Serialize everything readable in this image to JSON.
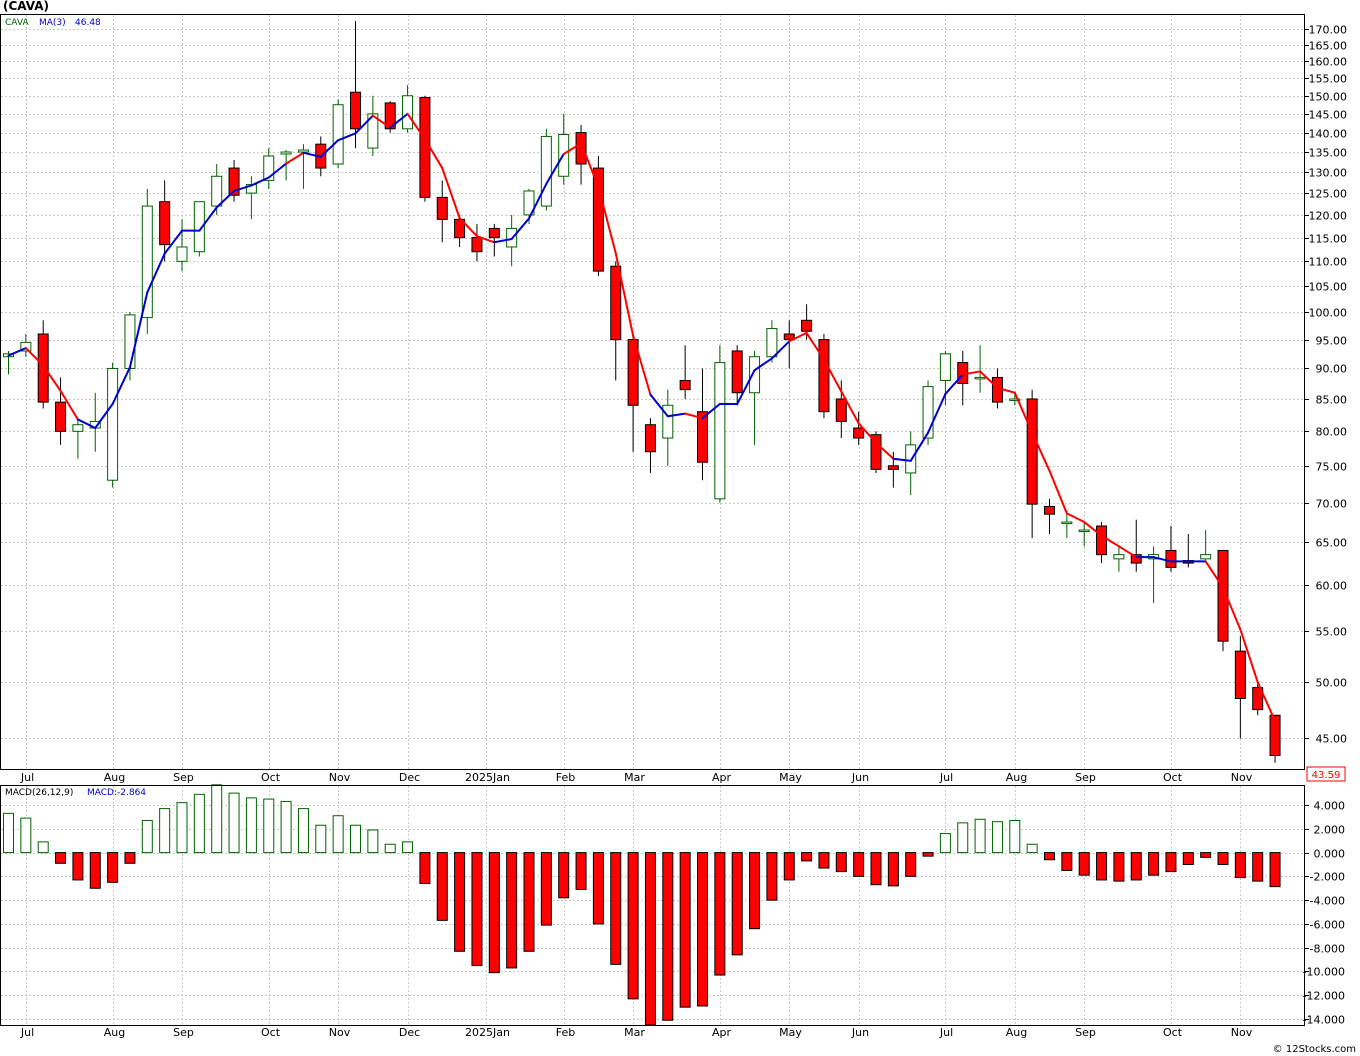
{
  "header": {
    "symbol": "(CAVA)"
  },
  "footer": {
    "copyright": "© 12Stocks.com"
  },
  "colors": {
    "up": "#006400",
    "down": "#ff0000",
    "ma_up": "#0000d0",
    "ma_down": "#ff0000",
    "grid": "#c8c8c8"
  },
  "chart_data": [
    {
      "type": "candlestick",
      "legend": {
        "symbol": "CAVA",
        "ma_label": "MA(3)",
        "ma_value": "46.48"
      },
      "scale": "log",
      "ylim": [
        42.5,
        174.5
      ],
      "y_ticks": [
        "170.00",
        "165.00",
        "160.00",
        "155.00",
        "150.00",
        "145.00",
        "140.00",
        "135.00",
        "130.00",
        "125.00",
        "120.00",
        "115.00",
        "110.00",
        "105.00",
        "100.00",
        "95.00",
        "90.00",
        "85.00",
        "80.00",
        "75.00",
        "70.00",
        "65.00",
        "60.00",
        "55.00",
        "50.00",
        "45.00"
      ],
      "last_price": "43.59",
      "x_ticks": [
        {
          "label": "Jul",
          "i": 1
        },
        {
          "label": "Aug",
          "i": 6
        },
        {
          "label": "Sep",
          "i": 10
        },
        {
          "label": "Oct",
          "i": 15
        },
        {
          "label": "Nov",
          "i": 19
        },
        {
          "label": "Dec",
          "i": 23
        },
        {
          "label": "2025Jan",
          "i": 27.5
        },
        {
          "label": "Feb",
          "i": 32
        },
        {
          "label": "Mar",
          "i": 36
        },
        {
          "label": "Apr",
          "i": 41
        },
        {
          "label": "May",
          "i": 45
        },
        {
          "label": "Jun",
          "i": 49
        },
        {
          "label": "Jul",
          "i": 54
        },
        {
          "label": "Aug",
          "i": 58
        },
        {
          "label": "Sep",
          "i": 62
        },
        {
          "label": "Oct",
          "i": 67
        },
        {
          "label": "Nov",
          "i": 71
        }
      ],
      "candles": [
        [
          92,
          93,
          89,
          92.5
        ],
        [
          93,
          96,
          92,
          94.5
        ],
        [
          96,
          98.5,
          83.5,
          84.5
        ],
        [
          84.5,
          88.5,
          78,
          80
        ],
        [
          80,
          82,
          76,
          81
        ],
        [
          80.5,
          86,
          77,
          81.5
        ],
        [
          73,
          91,
          72,
          90
        ],
        [
          90,
          100,
          88,
          99.5
        ],
        [
          99,
          126,
          96,
          122
        ],
        [
          123,
          128,
          110,
          113.5
        ],
        [
          110,
          119,
          108,
          113
        ],
        [
          112,
          122,
          111,
          123
        ],
        [
          122,
          132,
          120,
          129
        ],
        [
          131,
          133,
          123,
          124.5
        ],
        [
          125,
          129,
          119,
          127
        ],
        [
          128,
          136,
          126,
          134
        ],
        [
          134.5,
          135.5,
          128,
          135
        ],
        [
          135,
          137,
          126,
          135.5
        ],
        [
          137,
          139,
          129,
          131
        ],
        [
          132,
          149,
          131,
          147.5
        ],
        [
          151,
          172.5,
          136,
          141
        ],
        [
          136,
          150,
          134,
          145
        ],
        [
          148,
          148.5,
          140,
          141
        ],
        [
          141,
          153,
          140,
          150
        ],
        [
          149.5,
          150,
          123,
          124
        ],
        [
          124,
          128,
          114,
          119
        ],
        [
          119,
          120,
          113,
          115
        ],
        [
          115,
          118,
          110,
          112
        ],
        [
          117,
          118,
          111,
          115
        ],
        [
          113,
          120,
          109,
          117
        ],
        [
          120,
          126,
          118,
          125.5
        ],
        [
          122,
          141,
          121,
          139
        ],
        [
          129,
          145,
          127,
          139.5
        ],
        [
          140,
          142,
          127,
          132
        ],
        [
          131,
          134,
          107,
          108
        ],
        [
          109,
          110,
          88,
          95
        ],
        [
          95,
          96,
          77,
          84
        ],
        [
          81,
          82,
          74,
          77
        ],
        [
          79,
          86.5,
          75,
          84
        ],
        [
          88,
          94,
          85,
          86.5
        ],
        [
          83,
          90,
          73,
          75.5
        ],
        [
          70.5,
          94,
          70,
          91
        ],
        [
          93,
          94,
          84,
          86
        ],
        [
          86,
          93,
          78,
          92
        ],
        [
          92,
          98.5,
          91,
          97
        ],
        [
          96,
          98.5,
          90,
          95
        ],
        [
          98.5,
          101.5,
          95,
          96.5
        ],
        [
          95,
          96,
          82,
          83
        ],
        [
          85,
          88,
          79,
          81.5
        ],
        [
          80.5,
          83,
          78,
          79
        ],
        [
          79.5,
          80,
          74,
          74.5
        ],
        [
          75,
          77,
          72,
          74.5
        ],
        [
          74,
          80,
          71,
          78
        ],
        [
          79,
          88,
          78,
          87
        ],
        [
          88,
          93,
          84,
          92.5
        ],
        [
          91,
          93,
          84,
          87.5
        ],
        [
          88.5,
          94,
          86,
          88.5
        ],
        [
          88.5,
          90,
          83.5,
          84.5
        ],
        [
          85,
          86,
          84,
          85
        ],
        [
          85,
          86.5,
          65.5,
          69.8
        ],
        [
          69.5,
          70.5,
          66,
          68.5
        ],
        [
          67.5,
          69,
          65.5,
          67.5
        ],
        [
          66.5,
          67.5,
          64.5,
          66.5
        ],
        [
          67,
          67.5,
          62.5,
          63.5
        ],
        [
          63,
          64.5,
          61.5,
          63.5
        ],
        [
          63.5,
          67.8,
          61.5,
          62.5
        ],
        [
          63,
          64.5,
          58,
          63.5
        ],
        [
          64,
          67,
          61.5,
          62
        ],
        [
          62.8,
          66,
          62,
          62.5
        ],
        [
          63,
          66.5,
          62.5,
          63.5
        ],
        [
          64,
          64,
          53,
          54
        ],
        [
          53,
          54.5,
          45,
          48.5
        ],
        [
          49.5,
          50,
          47,
          47.5
        ],
        [
          47,
          47,
          43,
          43.59
        ]
      ],
      "ma3": [
        92.2,
        93.5,
        90.5,
        86.3,
        81.8,
        80.5,
        84.2,
        90.2,
        103.8,
        111.6,
        116.5,
        116.5,
        121.7,
        125.5,
        126.8,
        128.7,
        132.1,
        134.8,
        133.8,
        138.0,
        139.8,
        144.5,
        141.3,
        145.0,
        138.3,
        131.0,
        119.3,
        115.3,
        114.0,
        114.7,
        119.2,
        127.2,
        134.5,
        137.2,
        126.5,
        111.7,
        95.7,
        85.7,
        82.3,
        82.7,
        82.0,
        84.2,
        84.2,
        89.7,
        91.7,
        94.7,
        96.2,
        91.5,
        86.2,
        81.2,
        78.3,
        76.0,
        75.7,
        79.8,
        85.8,
        89.0,
        89.5,
        86.8,
        86.0,
        79.8,
        74.3,
        68.6,
        67.5,
        65.8,
        64.5,
        63.2,
        63.2,
        62.7,
        62.7,
        62.7,
        59.7,
        55.2,
        50.0,
        46.5
      ],
      "ma3_colors": [
        "u",
        "u",
        "d",
        "d",
        "d",
        "u",
        "u",
        "u",
        "u",
        "u",
        "u",
        "u",
        "u",
        "u",
        "u",
        "u",
        "u",
        "d",
        "u",
        "u",
        "u",
        "u",
        "d",
        "u",
        "d",
        "d",
        "d",
        "d",
        "d",
        "u",
        "u",
        "u",
        "u",
        "d",
        "d",
        "d",
        "d",
        "d",
        "u",
        "u",
        "d",
        "u",
        "u",
        "u",
        "u",
        "u",
        "d",
        "d",
        "d",
        "d",
        "d",
        "d",
        "u",
        "u",
        "u",
        "u",
        "d",
        "d",
        "d",
        "d",
        "d",
        "d",
        "d",
        "d",
        "d",
        "d",
        "u",
        "u",
        "u",
        "u",
        "d",
        "d",
        "d",
        "d"
      ]
    },
    {
      "type": "bar",
      "legend": {
        "label": "MACD(26,12,9)",
        "value_label": "MACD:-2.864"
      },
      "ylim": [
        -14.5,
        5.6
      ],
      "y_ticks": [
        "4.000",
        "2.000",
        "0.000",
        "-2.000",
        "-4.000",
        "-6.000",
        "-8.000",
        "-10.000",
        "-12.000",
        "-14.000"
      ],
      "values": [
        3.3,
        2.9,
        0.9,
        -0.9,
        -2.3,
        -3.0,
        -2.5,
        -0.9,
        2.7,
        3.7,
        4.2,
        4.9,
        5.7,
        5.0,
        4.6,
        4.5,
        4.3,
        3.7,
        2.3,
        3.1,
        2.3,
        1.9,
        0.7,
        0.9,
        -2.6,
        -5.7,
        -8.3,
        -9.5,
        -10.1,
        -9.7,
        -8.3,
        -6.1,
        -3.8,
        -3.1,
        -6.0,
        -9.4,
        -12.3,
        -14.5,
        -14.1,
        -13.0,
        -12.9,
        -10.3,
        -8.6,
        -6.4,
        -4.0,
        -2.3,
        -0.7,
        -1.3,
        -1.6,
        -2.0,
        -2.7,
        -2.8,
        -2.0,
        -0.3,
        1.6,
        2.5,
        2.8,
        2.6,
        2.7,
        0.7,
        -0.6,
        -1.5,
        -1.9,
        -2.3,
        -2.4,
        -2.3,
        -1.9,
        -1.6,
        -1.0,
        -0.4,
        -1.0,
        -2.1,
        -2.4,
        -2.864
      ]
    }
  ]
}
